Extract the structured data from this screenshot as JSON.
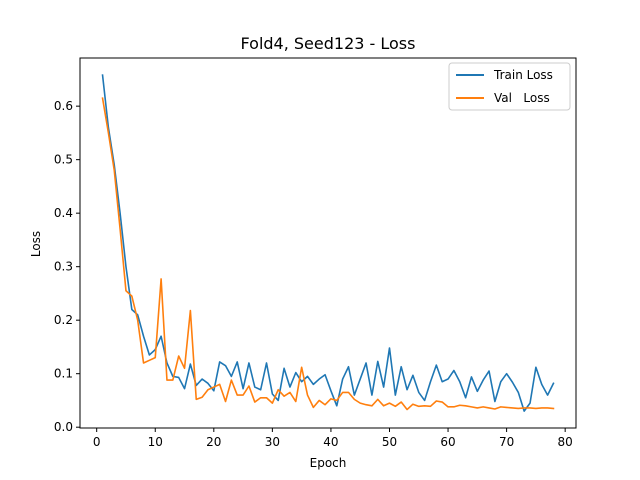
{
  "chart_data": {
    "type": "line",
    "title": "Fold4, Seed123 - Loss",
    "xlabel": "Epoch",
    "ylabel": "Loss",
    "xlim": [
      -2.85,
      81.85
    ],
    "ylim": [
      -0.0015,
      0.69
    ],
    "xticks": [
      0,
      10,
      20,
      30,
      40,
      50,
      60,
      70,
      80
    ],
    "yticks": [
      0.0,
      0.1,
      0.2,
      0.3,
      0.4,
      0.5,
      0.6
    ],
    "ytick_labels": [
      "0.0",
      "0.1",
      "0.2",
      "0.3",
      "0.4",
      "0.5",
      "0.6"
    ],
    "legend_position": "top-right",
    "grid": false,
    "x": [
      1,
      2,
      3,
      4,
      5,
      6,
      7,
      8,
      9,
      10,
      11,
      12,
      13,
      14,
      15,
      16,
      17,
      18,
      19,
      20,
      21,
      22,
      23,
      24,
      25,
      26,
      27,
      28,
      29,
      30,
      31,
      32,
      33,
      34,
      35,
      36,
      37,
      38,
      39,
      40,
      41,
      42,
      43,
      44,
      45,
      46,
      47,
      48,
      49,
      50,
      51,
      52,
      53,
      54,
      55,
      56,
      57,
      58,
      59,
      60,
      61,
      62,
      63,
      64,
      65,
      66,
      67,
      68,
      69,
      70,
      71,
      72,
      73,
      74,
      75,
      76,
      77,
      78
    ],
    "series": [
      {
        "name": "Train Loss",
        "color": "#1f77b4",
        "values": [
          0.658,
          0.56,
          0.49,
          0.4,
          0.3,
          0.22,
          0.21,
          0.17,
          0.135,
          0.145,
          0.17,
          0.12,
          0.095,
          0.093,
          0.072,
          0.118,
          0.078,
          0.09,
          0.082,
          0.068,
          0.122,
          0.115,
          0.095,
          0.122,
          0.072,
          0.12,
          0.075,
          0.07,
          0.12,
          0.062,
          0.05,
          0.11,
          0.075,
          0.102,
          0.085,
          0.095,
          0.08,
          0.09,
          0.098,
          0.068,
          0.04,
          0.09,
          0.113,
          0.06,
          0.09,
          0.12,
          0.06,
          0.123,
          0.075,
          0.148,
          0.06,
          0.113,
          0.07,
          0.097,
          0.065,
          0.05,
          0.085,
          0.116,
          0.085,
          0.09,
          0.106,
          0.085,
          0.055,
          0.094,
          0.067,
          0.088,
          0.105,
          0.048,
          0.085,
          0.1,
          0.084,
          0.065,
          0.03,
          0.045,
          0.112,
          0.08,
          0.06,
          0.082
        ]
      },
      {
        "name": "Val   Loss",
        "color": "#ff7f0e",
        "values": [
          0.615,
          0.55,
          0.48,
          0.37,
          0.255,
          0.245,
          0.2,
          0.12,
          0.125,
          0.13,
          0.277,
          0.088,
          0.088,
          0.133,
          0.11,
          0.218,
          0.052,
          0.056,
          0.07,
          0.075,
          0.08,
          0.048,
          0.088,
          0.06,
          0.06,
          0.077,
          0.047,
          0.055,
          0.055,
          0.045,
          0.07,
          0.058,
          0.065,
          0.048,
          0.112,
          0.06,
          0.037,
          0.05,
          0.042,
          0.053,
          0.05,
          0.065,
          0.065,
          0.052,
          0.045,
          0.042,
          0.04,
          0.052,
          0.04,
          0.045,
          0.039,
          0.047,
          0.033,
          0.043,
          0.039,
          0.04,
          0.039,
          0.049,
          0.047,
          0.038,
          0.038,
          0.041,
          0.04,
          0.038,
          0.036,
          0.038,
          0.036,
          0.034,
          0.038,
          0.037,
          0.036,
          0.035,
          0.036,
          0.036,
          0.035,
          0.036,
          0.036,
          0.035
        ]
      }
    ]
  }
}
